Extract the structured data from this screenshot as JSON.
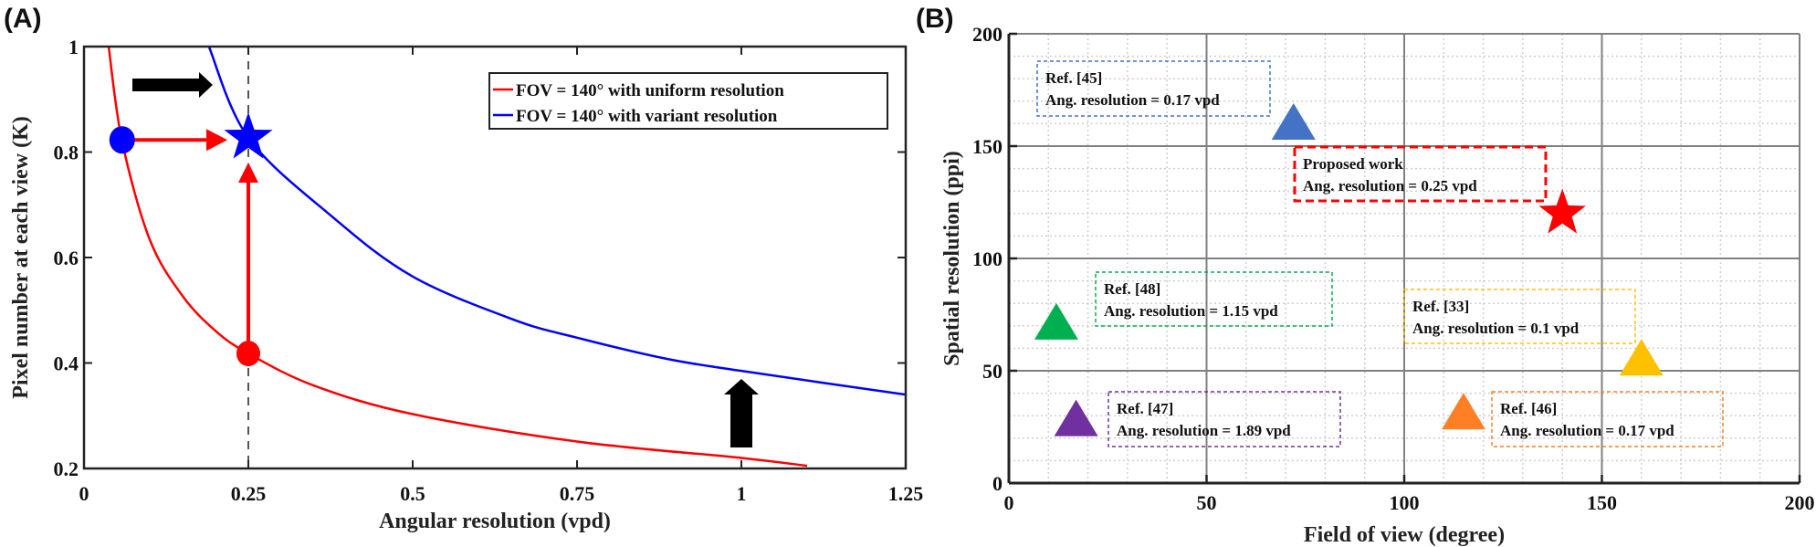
{
  "chart_data": [
    {
      "panel_label": "(A)",
      "type": "line",
      "xlabel": "Angular resolution (vpd)",
      "ylabel": "Pixel number at each view (K)",
      "xlim": [
        0,
        1.25
      ],
      "ylim": [
        0.2,
        1
      ],
      "xticks": [
        "0",
        "0.25",
        "0.5",
        "0.75",
        "1",
        "1.25"
      ],
      "xtick_values": [
        0,
        0.25,
        0.5,
        0.75,
        1,
        1.25
      ],
      "yticks": [
        "0.2",
        "0.4",
        "0.6",
        "0.8",
        "1"
      ],
      "ytick_values": [
        0.2,
        0.4,
        0.6,
        0.8,
        1
      ],
      "grid": false,
      "legend_position": "top-right",
      "series": [
        {
          "name": "FOV = 140° with uniform resolution",
          "color": "#FF0000",
          "x": [
            0.0375,
            0.058,
            0.1,
            0.15,
            0.2,
            0.25,
            0.35,
            0.5,
            0.75,
            1.0,
            1.1
          ],
          "y": [
            1.0,
            0.82,
            0.634,
            0.527,
            0.461,
            0.418,
            0.357,
            0.303,
            0.251,
            0.22,
            0.205
          ]
        },
        {
          "name": "FOV = 140° with variant resolution",
          "color": "#0000FF",
          "x": [
            0.19,
            0.25,
            0.377,
            0.5,
            0.654,
            0.75,
            0.886,
            1.0,
            1.25
          ],
          "y": [
            1.0,
            0.827,
            0.678,
            0.564,
            0.482,
            0.448,
            0.408,
            0.385,
            0.34
          ]
        }
      ],
      "markers": [
        {
          "shape": "circle",
          "color": "#0000FF",
          "x": 0.058,
          "y": 0.823
        },
        {
          "shape": "star",
          "color": "#0000FF",
          "x": 0.25,
          "y": 0.827
        },
        {
          "shape": "circle",
          "color": "#FF0000",
          "x": 0.25,
          "y": 0.418
        }
      ],
      "reference_line": {
        "x": 0.25,
        "style": "dashed",
        "color": "#555555"
      }
    },
    {
      "panel_label": "(B)",
      "type": "scatter",
      "xlabel": "Field of view (degree)",
      "ylabel": "Spatial resolution (ppi)",
      "xlim": [
        0,
        200
      ],
      "ylim": [
        0,
        200
      ],
      "xticks": [
        "0",
        "50",
        "100",
        "150",
        "200"
      ],
      "xtick_values": [
        0,
        50,
        100,
        150,
        200
      ],
      "yticks": [
        "0",
        "50",
        "100",
        "150",
        "200"
      ],
      "ytick_values": [
        0,
        50,
        100,
        150,
        200
      ],
      "grid": true,
      "minor_grid": true,
      "points": [
        {
          "label": "Ref. [45]",
          "note": "Ang. resolution = 0.17 vpd",
          "x": 72,
          "y": 161,
          "shape": "triangle",
          "color": "#4472C4"
        },
        {
          "label": "Proposed work",
          "note": "Ang. resolution = 0.25 vpd",
          "x": 140,
          "y": 120,
          "shape": "star",
          "color": "#FF0000"
        },
        {
          "label": "Ref. [48]",
          "note": "Ang. resolution = 1.15 vpd",
          "x": 12,
          "y": 72,
          "shape": "triangle",
          "color": "#00B050"
        },
        {
          "label": "Ref. [33]",
          "note": "Ang. resolution = 0.1 vpd",
          "x": 160,
          "y": 56,
          "shape": "triangle",
          "color": "#FFC000"
        },
        {
          "label": "Ref. [47]",
          "note": "Ang. resolution = 1.89 vpd",
          "x": 17,
          "y": 29,
          "shape": "triangle",
          "color": "#7030A0"
        },
        {
          "label": "Ref. [46]",
          "note": "Ang. resolution = 0.17 vpd",
          "x": 115,
          "y": 32,
          "shape": "triangle",
          "color": "#FF7F27"
        }
      ]
    }
  ]
}
